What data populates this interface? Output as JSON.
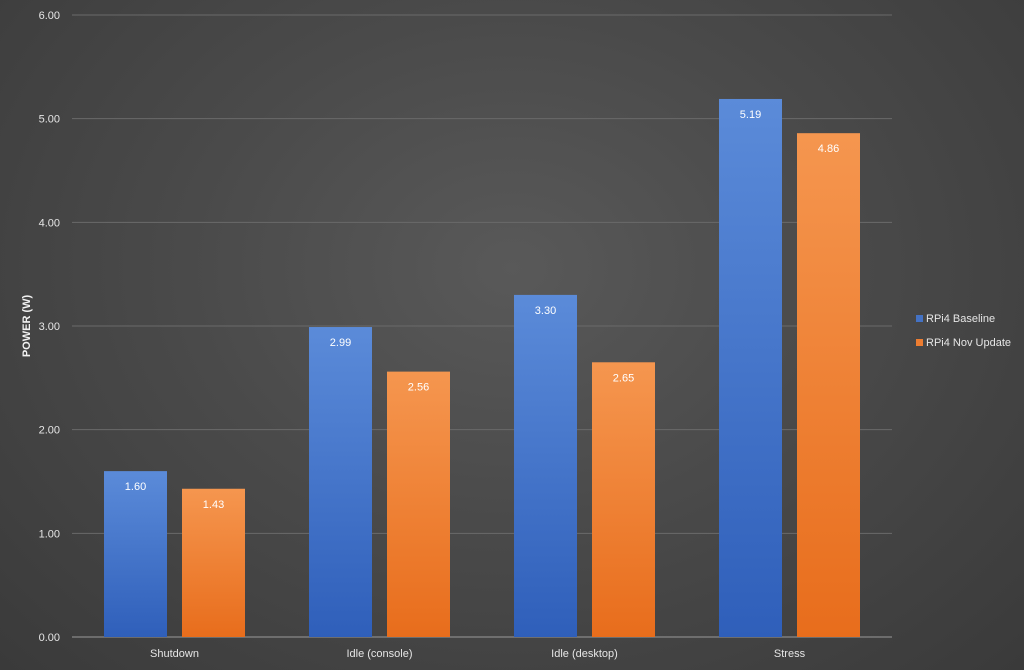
{
  "chart_data": {
    "type": "bar",
    "title": "",
    "xlabel": "",
    "ylabel": "POWER (W)",
    "ylim": [
      0,
      6
    ],
    "yticks": [
      "0.00",
      "1.00",
      "2.00",
      "3.00",
      "4.00",
      "5.00",
      "6.00"
    ],
    "categories": [
      "Shutdown",
      "Idle (console)",
      "Idle (desktop)",
      "Stress"
    ],
    "series": [
      {
        "name": "RPi4 Baseline",
        "color": "#4472c4",
        "values": [
          1.6,
          2.99,
          3.3,
          5.19
        ],
        "labels": [
          "1.60",
          "2.99",
          "3.30",
          "5.19"
        ]
      },
      {
        "name": "RPi4 Nov Update",
        "color": "#ed7d31",
        "values": [
          1.43,
          2.56,
          2.65,
          4.86
        ],
        "labels": [
          "1.43",
          "2.56",
          "2.65",
          "4.86"
        ]
      }
    ],
    "grid": true,
    "legend_position": "right"
  }
}
